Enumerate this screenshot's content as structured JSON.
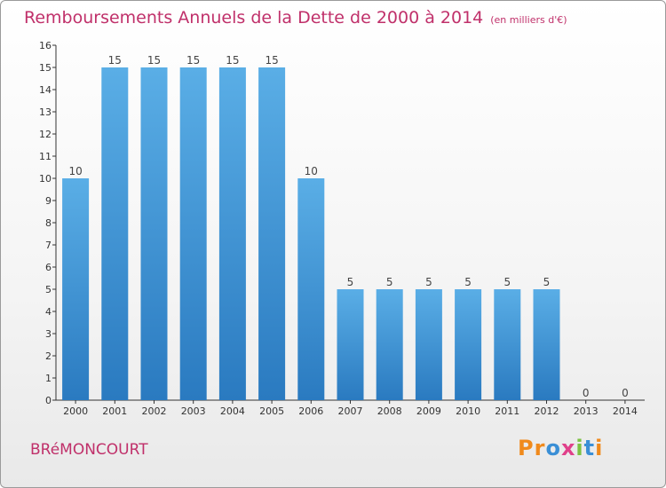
{
  "title": "Remboursements Annuels de la Dette de 2000 à 2014",
  "unit_note": "(en milliers d'€)",
  "commune": "BRéMONCOURT",
  "logo": {
    "letters": [
      "P",
      "r",
      "o",
      "x",
      "i",
      "t",
      "i"
    ],
    "colors": [
      "#f08a1c",
      "#f08a1c",
      "#3a8fd6",
      "#e0408a",
      "#7cc242",
      "#3a8fd6",
      "#f08a1c"
    ]
  },
  "chart_data": {
    "type": "bar",
    "title": "Remboursements Annuels de la Dette de 2000 à 2014",
    "xlabel": "",
    "ylabel": "",
    "categories": [
      "2000",
      "2001",
      "2002",
      "2003",
      "2004",
      "2005",
      "2006",
      "2007",
      "2008",
      "2009",
      "2010",
      "2011",
      "2012",
      "2013",
      "2014"
    ],
    "values": [
      10,
      15,
      15,
      15,
      15,
      15,
      10,
      5,
      5,
      5,
      5,
      5,
      5,
      0,
      0
    ],
    "value_labels": [
      "10",
      "15",
      "15",
      "15",
      "15",
      "15",
      "10",
      "5",
      "5",
      "5",
      "5",
      "5",
      "5",
      "0",
      "0"
    ],
    "ylim": [
      0,
      16
    ],
    "yticks": [
      "0",
      "1",
      "2",
      "3",
      "4",
      "5",
      "6",
      "7",
      "8",
      "9",
      "10",
      "11",
      "12",
      "13",
      "14",
      "15",
      "16"
    ],
    "grid": false,
    "legend": "none",
    "bar_color_top": "#5aaee6",
    "bar_color_bottom": "#2a7ac0"
  }
}
